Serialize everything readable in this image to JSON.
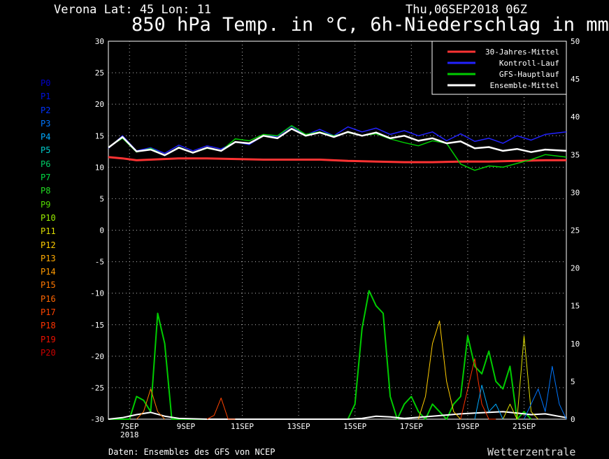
{
  "header": {
    "location": "Verona   Lat: 45 Lon: 11",
    "run": "Thu,06SEP2018 06Z",
    "title": "850 hPa Temp. in °C, 6h-Niederschlag in mm"
  },
  "members": [
    {
      "label": "P0",
      "color": "#0000cc"
    },
    {
      "label": "P1",
      "color": "#0011dd"
    },
    {
      "label": "P2",
      "color": "#0033ff"
    },
    {
      "label": "P3",
      "color": "#0077ff"
    },
    {
      "label": "P4",
      "color": "#00aaff"
    },
    {
      "label": "P5",
      "color": "#00cccc"
    },
    {
      "label": "P6",
      "color": "#00cc66"
    },
    {
      "label": "P7",
      "color": "#00dd44"
    },
    {
      "label": "P8",
      "color": "#22dd22"
    },
    {
      "label": "P9",
      "color": "#55dd00"
    },
    {
      "label": "P10",
      "color": "#99ee00"
    },
    {
      "label": "P11",
      "color": "#dddd00"
    },
    {
      "label": "P12",
      "color": "#ffcc00"
    },
    {
      "label": "P13",
      "color": "#ffaa00"
    },
    {
      "label": "P14",
      "color": "#ff9900"
    },
    {
      "label": "P15",
      "color": "#ff7700"
    },
    {
      "label": "P16",
      "color": "#ff6600"
    },
    {
      "label": "P17",
      "color": "#ff4400"
    },
    {
      "label": "P18",
      "color": "#ff3300"
    },
    {
      "label": "P19",
      "color": "#ee1100"
    },
    {
      "label": "P20",
      "color": "#cc0000"
    }
  ],
  "footer": "Daten: Ensembles des GFS von NCEP",
  "brand": "Wetterzentrale",
  "chart_data": {
    "type": "line",
    "ylim_left": [
      -30,
      30
    ],
    "yticks_left": [
      30,
      25,
      20,
      15,
      10,
      5,
      0,
      -5,
      -10,
      -15,
      -20,
      -25,
      -30
    ],
    "ylim_right": [
      0,
      50
    ],
    "yticks_right": [
      50,
      45,
      40,
      35,
      30,
      25,
      20,
      15,
      10,
      5,
      0
    ],
    "xlim": [
      6.5,
      22.75
    ],
    "x_ticks": [
      {
        "x": 7.25,
        "label": "7SEP"
      },
      {
        "x": 9.25,
        "label": "9SEP"
      },
      {
        "x": 11.25,
        "label": "11SEP"
      },
      {
        "x": 13.25,
        "label": "13SEP"
      },
      {
        "x": 15.25,
        "label": "15SEP"
      },
      {
        "x": 17.25,
        "label": "17SEP"
      },
      {
        "x": 19.25,
        "label": "19SEP"
      },
      {
        "x": 21.25,
        "label": "21SEP"
      }
    ],
    "x_year_label": "2018",
    "grid": true,
    "legend_position": "top-right",
    "legend": [
      {
        "label": "30-Jahres-Mittel",
        "color": "#ff3333"
      },
      {
        "label": "Kontroll-Lauf",
        "color": "#2222ff"
      },
      {
        "label": "GFS-Hauptlauf",
        "color": "#00cc00"
      },
      {
        "label": "Ensemble-Mittel",
        "color": "#ffffff"
      }
    ],
    "temperature_series": [
      {
        "name": "30-Jahres-Mittel",
        "color": "#ff3333",
        "width": 3,
        "x": [
          6.5,
          7.0,
          7.5,
          8.0,
          9.0,
          10.0,
          11.0,
          12.0,
          13.0,
          14.0,
          15.0,
          16.0,
          17.0,
          18.0,
          19.0,
          20.0,
          21.0,
          22.0,
          22.75
        ],
        "y": [
          11.6,
          11.4,
          11.1,
          11.2,
          11.4,
          11.4,
          11.3,
          11.2,
          11.2,
          11.2,
          11.0,
          10.9,
          10.8,
          10.8,
          10.9,
          10.9,
          11.0,
          11.1,
          11.1
        ]
      },
      {
        "name": "Kontroll-Lauf",
        "color": "#2222ff",
        "width": 1.5,
        "x": [
          6.5,
          7.0,
          7.5,
          8.0,
          8.5,
          9.0,
          9.5,
          10.0,
          10.5,
          11.0,
          11.5,
          12.0,
          12.5,
          13.0,
          13.5,
          14.0,
          14.5,
          15.0,
          15.5,
          16.0,
          16.5,
          17.0,
          17.5,
          18.0,
          18.5,
          19.0,
          19.5,
          20.0,
          20.5,
          21.0,
          21.5,
          22.0,
          22.75
        ],
        "y": [
          13.0,
          15.0,
          12.6,
          13.1,
          12.2,
          13.5,
          12.6,
          13.4,
          12.9,
          14.0,
          13.6,
          15.0,
          14.9,
          16.5,
          15.1,
          16.0,
          15.0,
          16.4,
          15.6,
          16.2,
          15.2,
          15.8,
          15.0,
          15.6,
          14.2,
          15.3,
          14.1,
          14.6,
          13.8,
          15.0,
          14.3,
          15.2,
          15.6
        ]
      },
      {
        "name": "GFS-Hauptlauf",
        "color": "#00cc00",
        "width": 1.5,
        "x": [
          6.5,
          7.0,
          7.5,
          8.0,
          8.5,
          9.0,
          9.5,
          10.0,
          10.5,
          11.0,
          11.5,
          12.0,
          12.5,
          13.0,
          13.5,
          14.0,
          14.5,
          15.0,
          15.5,
          16.0,
          16.5,
          17.0,
          17.5,
          18.0,
          18.5,
          19.0,
          19.5,
          20.0,
          20.5,
          21.0,
          21.5,
          22.0,
          22.75
        ],
        "y": [
          13.2,
          14.6,
          12.4,
          13.0,
          11.9,
          13.2,
          12.3,
          13.0,
          12.6,
          14.5,
          14.2,
          15.2,
          15.0,
          16.6,
          15.2,
          15.6,
          15.0,
          15.5,
          15.0,
          15.3,
          14.5,
          13.9,
          13.4,
          14.2,
          13.8,
          10.5,
          9.5,
          10.2,
          10.0,
          10.6,
          11.2,
          12.0,
          11.6
        ]
      },
      {
        "name": "Ensemble-Mittel",
        "color": "#ffffff",
        "width": 2.5,
        "x": [
          6.5,
          7.0,
          7.5,
          8.0,
          8.5,
          9.0,
          9.5,
          10.0,
          10.5,
          11.0,
          11.5,
          12.0,
          12.5,
          13.0,
          13.5,
          14.0,
          14.5,
          15.0,
          15.5,
          16.0,
          16.5,
          17.0,
          17.5,
          18.0,
          18.5,
          19.0,
          19.5,
          20.0,
          20.5,
          21.0,
          21.5,
          22.0,
          22.75
        ],
        "y": [
          13.1,
          14.8,
          12.5,
          12.8,
          11.9,
          13.1,
          12.3,
          13.1,
          12.6,
          14.0,
          13.8,
          15.0,
          14.6,
          16.1,
          15.0,
          15.5,
          14.8,
          15.6,
          15.0,
          15.5,
          14.6,
          15.0,
          14.2,
          14.6,
          13.8,
          14.1,
          13.0,
          13.2,
          12.6,
          12.9,
          12.4,
          12.8,
          12.6
        ]
      }
    ],
    "precipitation_series": [
      {
        "name": "GFS-Hauptlauf",
        "color": "#00cc00",
        "width": 2,
        "x": [
          6.5,
          7.0,
          7.25,
          7.5,
          7.75,
          8.0,
          8.25,
          8.5,
          8.75,
          9.0,
          14.75,
          15.0,
          15.25,
          15.5,
          15.75,
          16.0,
          16.25,
          16.5,
          16.75,
          17.0,
          17.25,
          17.5,
          17.75,
          18.0,
          18.25,
          18.5,
          18.75,
          19.0,
          19.25,
          19.5,
          19.75,
          20.0,
          20.25,
          20.5,
          20.75,
          21.0,
          21.25,
          21.5
        ],
        "y": [
          0,
          0,
          0,
          3,
          2.5,
          1,
          14,
          10,
          0,
          0,
          0,
          0,
          2,
          12,
          17,
          15,
          14,
          3,
          0,
          2,
          3,
          1,
          0,
          2,
          1,
          0,
          2,
          3,
          11,
          7,
          6,
          9,
          5,
          4,
          7,
          0,
          1,
          0
        ]
      },
      {
        "name": "Ensemble-Mittel",
        "color": "#ffffff",
        "width": 2,
        "x": [
          6.5,
          7.0,
          7.5,
          8.0,
          8.5,
          9.0,
          10.0,
          12.0,
          14.0,
          15.0,
          15.5,
          16.0,
          16.5,
          17.0,
          18.0,
          19.0,
          19.5,
          20.0,
          20.5,
          21.0,
          21.5,
          22.0,
          22.75
        ],
        "y": [
          0,
          0.2,
          0.6,
          0.9,
          0.4,
          0.1,
          0,
          0,
          0,
          0,
          0.1,
          0.4,
          0.3,
          0.1,
          0.4,
          0.7,
          0.8,
          0.9,
          1.0,
          0.8,
          0.6,
          0.7,
          0.2
        ]
      },
      {
        "name": "P12",
        "color": "#ffcc00",
        "width": 1,
        "x": [
          17.5,
          17.75,
          18.0,
          18.25,
          18.5,
          18.75,
          19.0
        ],
        "y": [
          0,
          3,
          10,
          13,
          5,
          1,
          0
        ]
      },
      {
        "name": "P11",
        "color": "#dddd00",
        "width": 1,
        "x": [
          20.5,
          20.75,
          21.0,
          21.25,
          21.5,
          21.75
        ],
        "y": [
          0,
          2,
          0,
          11,
          1,
          0
        ]
      },
      {
        "name": "P18",
        "color": "#ff3300",
        "width": 1,
        "x": [
          19.0,
          19.25,
          19.5,
          19.75,
          20.0,
          20.25
        ],
        "y": [
          0,
          4,
          8,
          2,
          0,
          0
        ]
      },
      {
        "name": "P17",
        "color": "#ff4400",
        "width": 1,
        "x": [
          10.0,
          10.25,
          10.5,
          10.75,
          11.0
        ],
        "y": [
          0,
          0.5,
          2.8,
          0,
          0
        ]
      },
      {
        "name": "P3",
        "color": "#0077ff",
        "width": 1,
        "x": [
          21.25,
          21.5,
          21.75,
          22.0,
          22.25,
          22.5,
          22.75
        ],
        "y": [
          0,
          2,
          4,
          1,
          7,
          2,
          0
        ]
      },
      {
        "name": "P4",
        "color": "#00aaff",
        "width": 1,
        "x": [
          19.5,
          19.75,
          20.0,
          20.25,
          20.5
        ],
        "y": [
          0,
          4.5,
          1,
          2,
          0
        ]
      },
      {
        "name": "P15",
        "color": "#ff7700",
        "width": 1,
        "x": [
          7.5,
          7.75,
          8.0,
          8.25,
          8.5
        ],
        "y": [
          0,
          1,
          4,
          1,
          0
        ]
      }
    ]
  }
}
